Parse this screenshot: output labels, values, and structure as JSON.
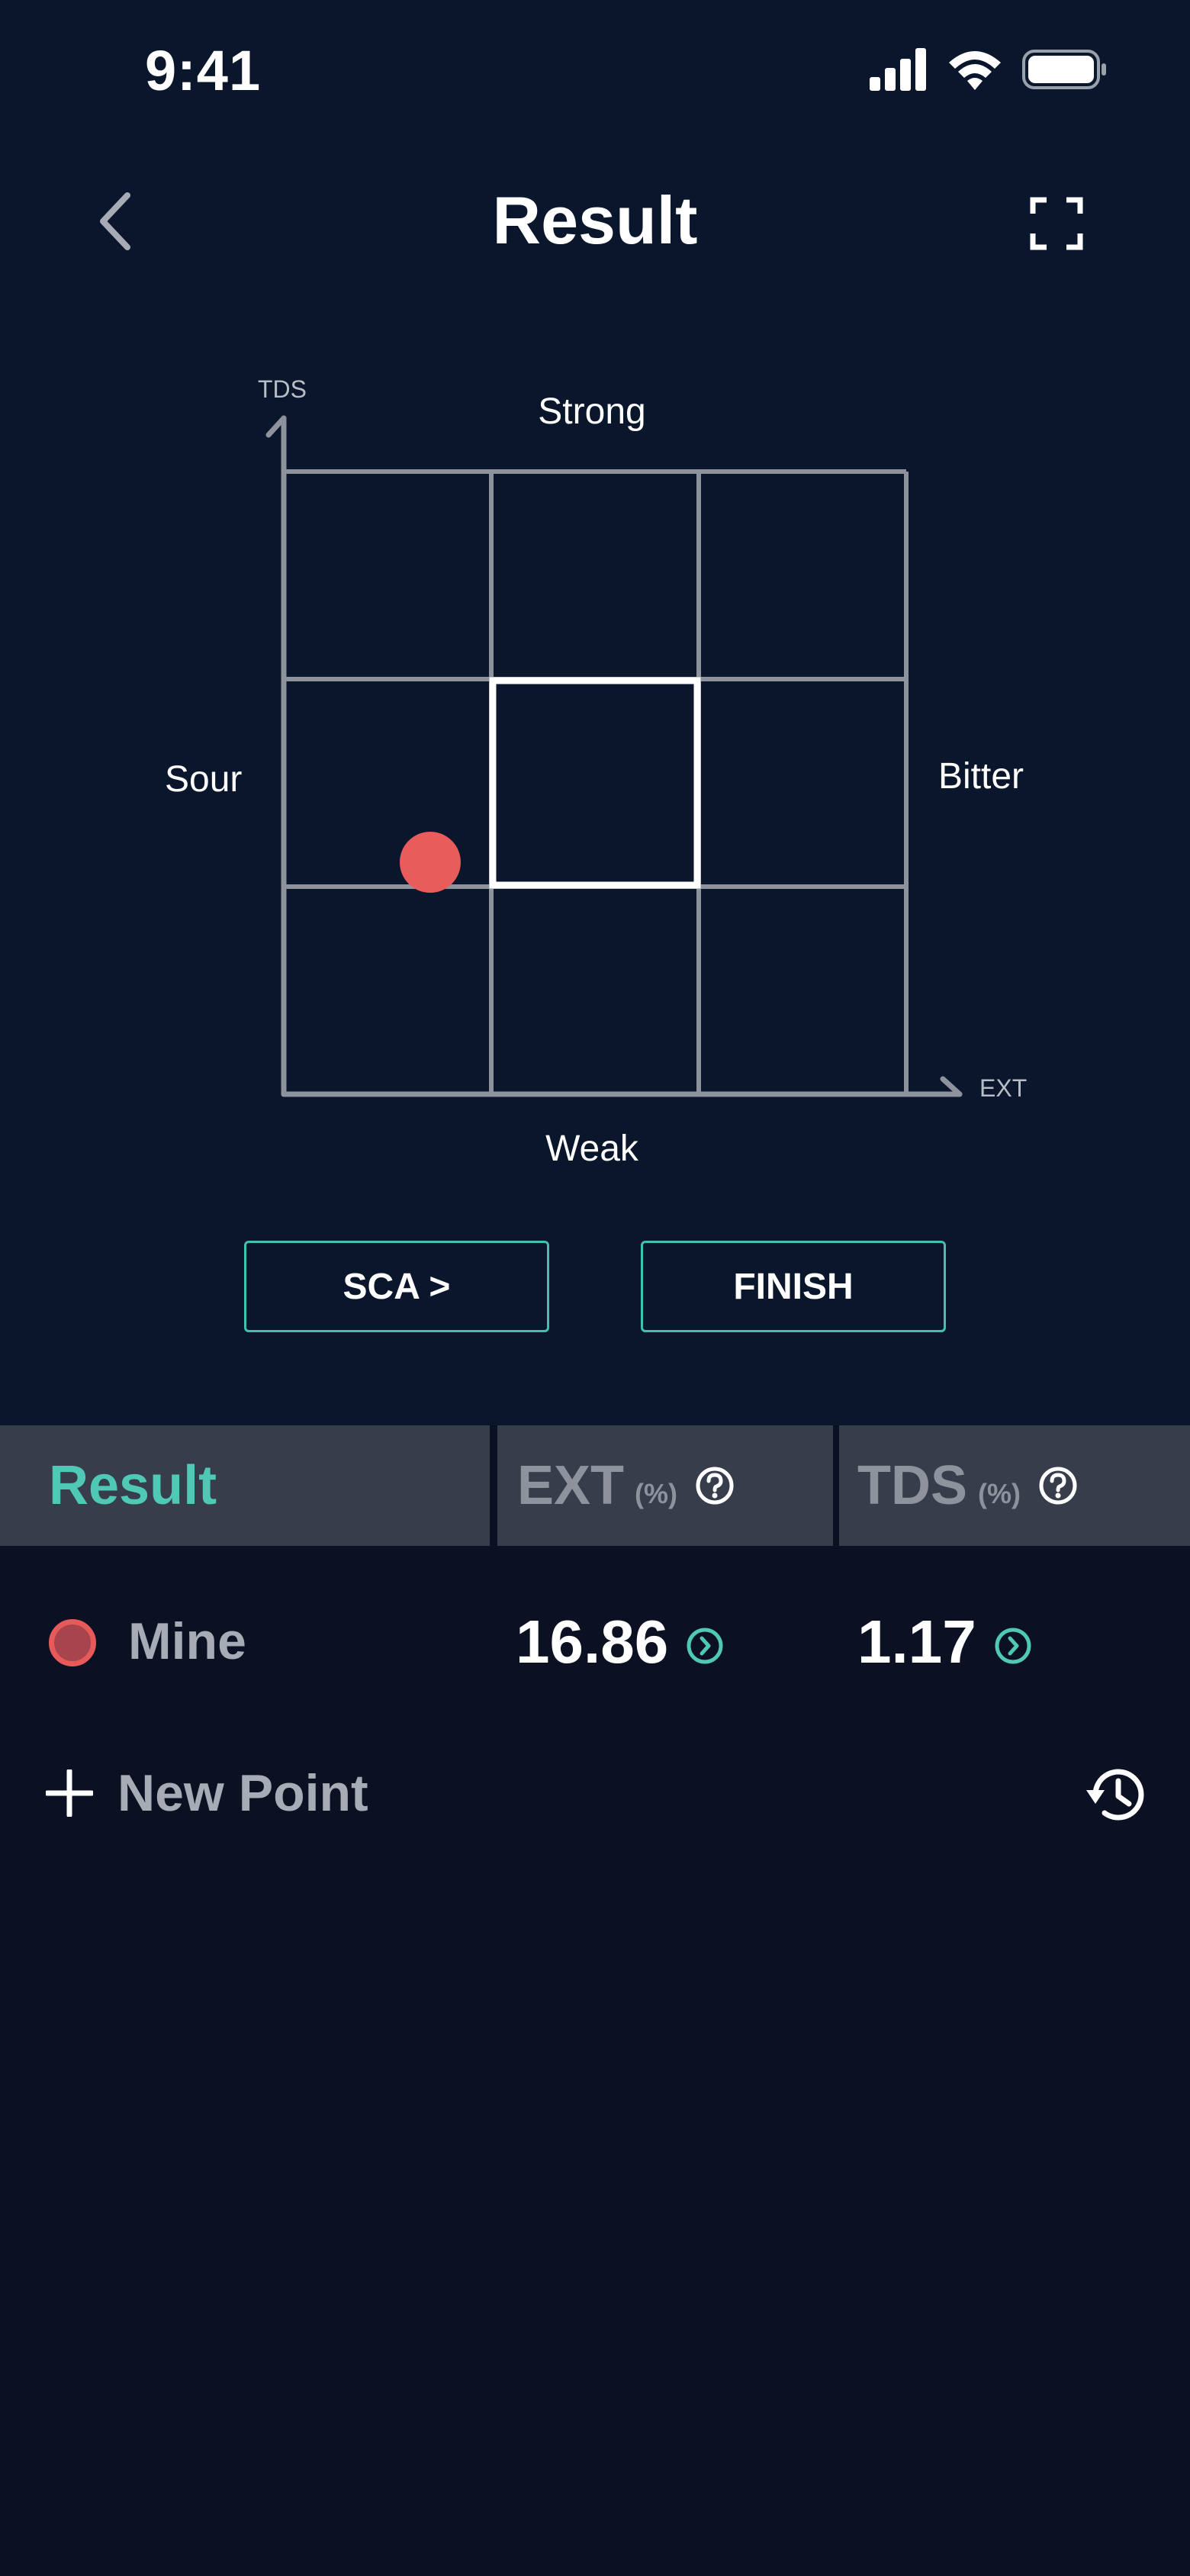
{
  "status_bar": {
    "time": "9:41"
  },
  "nav": {
    "title": "Result"
  },
  "chart": {
    "y_axis_label": "TDS",
    "x_axis_label": "EXT",
    "top_label": "Strong",
    "bottom_label": "Weak",
    "left_label": "Sour",
    "right_label": "Bitter",
    "point_color": "#e85c5c"
  },
  "buttons": {
    "sca": "SCA >",
    "finish": "FINISH"
  },
  "table": {
    "result_header": "Result",
    "ext_header": "EXT",
    "ext_unit": "(%)",
    "tds_header": "TDS",
    "tds_unit": "(%)"
  },
  "rows": [
    {
      "label": "Mine",
      "ext": "16.86",
      "tds": "1.17"
    }
  ],
  "new_point_label": "New Point",
  "colors": {
    "accent": "#4fc9b6",
    "top_bg": "#0a162b",
    "bottom_bg": "#0b1022"
  }
}
